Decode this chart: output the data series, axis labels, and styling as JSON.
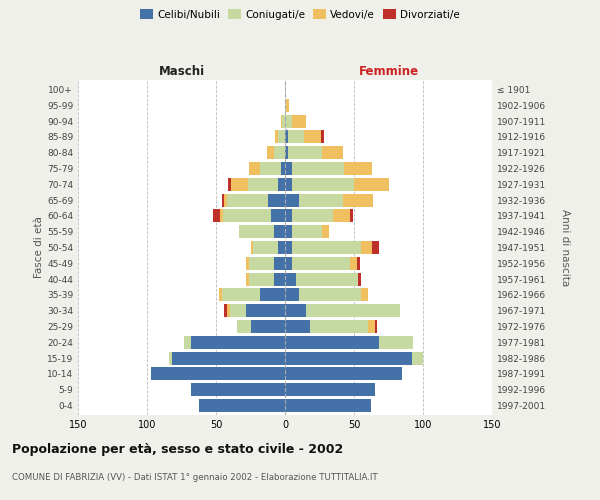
{
  "age_groups": [
    "0-4",
    "5-9",
    "10-14",
    "15-19",
    "20-24",
    "25-29",
    "30-34",
    "35-39",
    "40-44",
    "45-49",
    "50-54",
    "55-59",
    "60-64",
    "65-69",
    "70-74",
    "75-79",
    "80-84",
    "85-89",
    "90-94",
    "95-99",
    "100+"
  ],
  "birth_years": [
    "1997-2001",
    "1992-1996",
    "1987-1991",
    "1982-1986",
    "1977-1981",
    "1972-1976",
    "1967-1971",
    "1962-1966",
    "1957-1961",
    "1952-1956",
    "1947-1951",
    "1942-1946",
    "1937-1941",
    "1932-1936",
    "1927-1931",
    "1922-1926",
    "1917-1921",
    "1912-1916",
    "1907-1911",
    "1902-1906",
    "≤ 1901"
  ],
  "male": {
    "celibi": [
      62,
      68,
      97,
      82,
      68,
      25,
      28,
      18,
      8,
      8,
      5,
      8,
      10,
      12,
      5,
      3,
      0,
      0,
      0,
      0,
      0
    ],
    "coniugati": [
      0,
      0,
      0,
      2,
      5,
      10,
      12,
      28,
      18,
      18,
      18,
      25,
      35,
      30,
      22,
      15,
      8,
      5,
      2,
      0,
      0
    ],
    "vedovi": [
      0,
      0,
      0,
      0,
      0,
      0,
      2,
      2,
      2,
      2,
      2,
      0,
      2,
      2,
      12,
      8,
      5,
      2,
      1,
      0,
      0
    ],
    "divorziati": [
      0,
      0,
      0,
      0,
      0,
      0,
      2,
      0,
      0,
      0,
      0,
      0,
      5,
      2,
      2,
      0,
      0,
      0,
      0,
      0,
      0
    ]
  },
  "female": {
    "nubili": [
      62,
      65,
      85,
      92,
      68,
      18,
      15,
      10,
      8,
      5,
      5,
      5,
      5,
      10,
      5,
      5,
      2,
      2,
      0,
      0,
      0
    ],
    "coniugate": [
      0,
      0,
      0,
      8,
      25,
      42,
      68,
      45,
      45,
      42,
      50,
      22,
      30,
      32,
      45,
      38,
      25,
      12,
      5,
      1,
      0
    ],
    "vedove": [
      0,
      0,
      0,
      0,
      0,
      5,
      0,
      5,
      0,
      5,
      8,
      5,
      12,
      22,
      25,
      20,
      15,
      12,
      10,
      2,
      0
    ],
    "divorziate": [
      0,
      0,
      0,
      0,
      0,
      2,
      0,
      0,
      2,
      2,
      5,
      0,
      2,
      0,
      0,
      0,
      0,
      2,
      0,
      0,
      0
    ]
  },
  "colors": {
    "celibi": "#4472a8",
    "coniugati": "#c5d9a0",
    "vedovi": "#f0c060",
    "divorziati": "#c0302a"
  },
  "title": "Popolazione per età, sesso e stato civile - 2002",
  "subtitle": "COMUNE DI FABRIZIA (VV) - Dati ISTAT 1° gennaio 2002 - Elaborazione TUTTITALIA.IT",
  "xlabel_left": "Maschi",
  "xlabel_right": "Femmine",
  "ylabel_left": "Fasce di età",
  "ylabel_right": "Anni di nascita",
  "xlim": 150,
  "bg_color": "#f0f0eb",
  "plot_bg": "#ffffff"
}
